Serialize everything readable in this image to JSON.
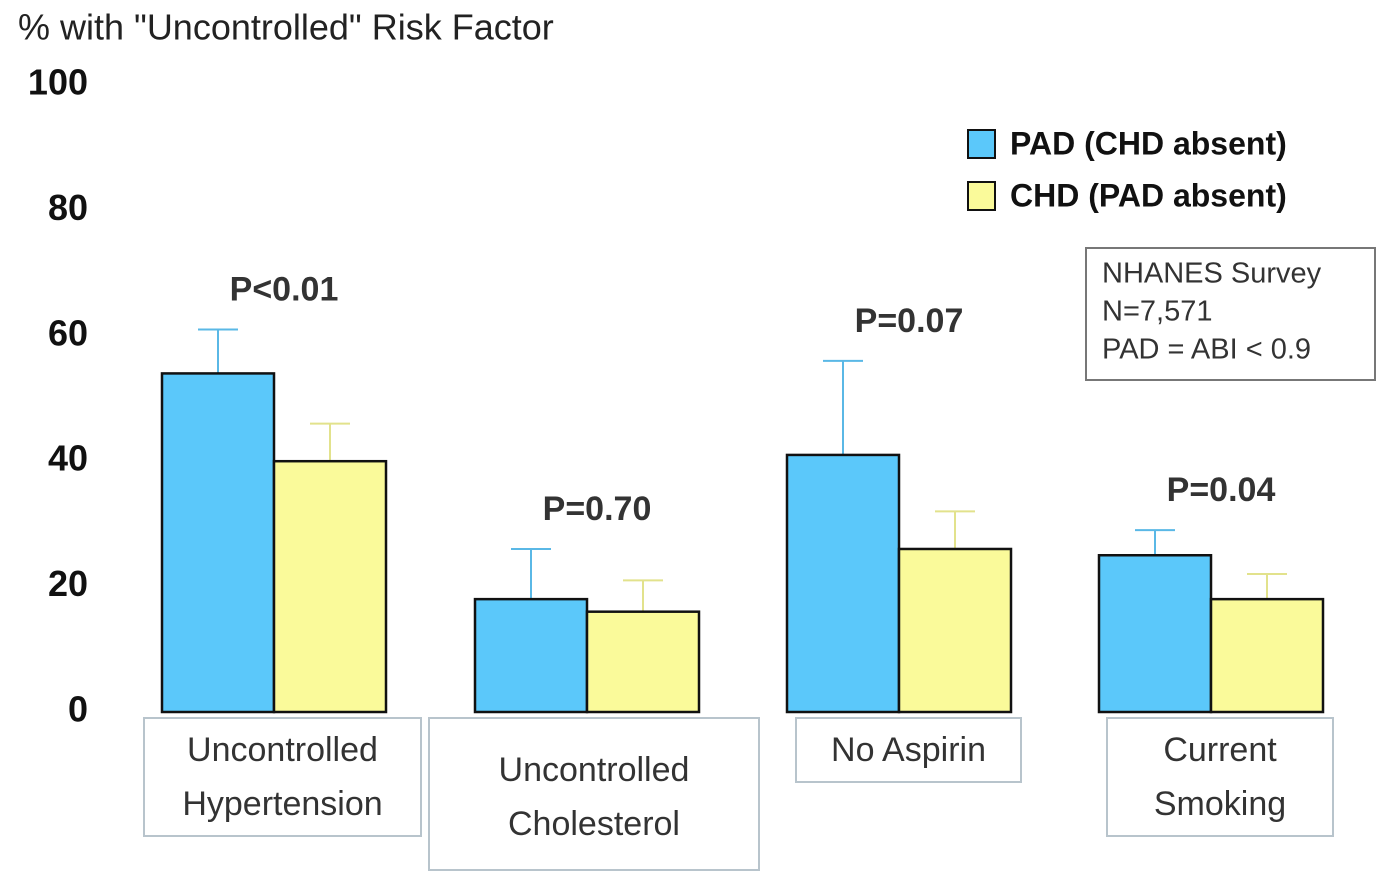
{
  "chart_data": {
    "type": "bar",
    "y_axis_title": "% with \"Uncontrolled\" Risk Factor",
    "categories": [
      "Uncontrolled Hypertension",
      "Uncontrolled Cholesterol",
      "No Aspirin",
      "Current Smoking"
    ],
    "series": [
      {
        "name": "PAD (CHD absent)",
        "color": "#5bc8fa",
        "error_color": "#5ab8e6",
        "values": [
          54,
          18,
          41,
          25
        ],
        "errors": [
          7,
          8,
          15,
          4
        ]
      },
      {
        "name": "CHD (PAD absent)",
        "color": "#fafa9a",
        "error_color": "#e2e28c",
        "values": [
          40,
          16,
          26,
          18
        ],
        "errors": [
          6,
          5,
          6,
          4
        ]
      }
    ],
    "annotations": [
      "P<0.01",
      "P=0.70",
      "P=0.07",
      "P=0.04"
    ],
    "note": [
      "NHANES Survey",
      "N=7,571",
      "PAD = ABI < 0.9"
    ],
    "ylim": [
      0,
      100
    ],
    "yticks": [
      0,
      20,
      40,
      60,
      80,
      100
    ],
    "legend": "top-right",
    "grid": false
  }
}
